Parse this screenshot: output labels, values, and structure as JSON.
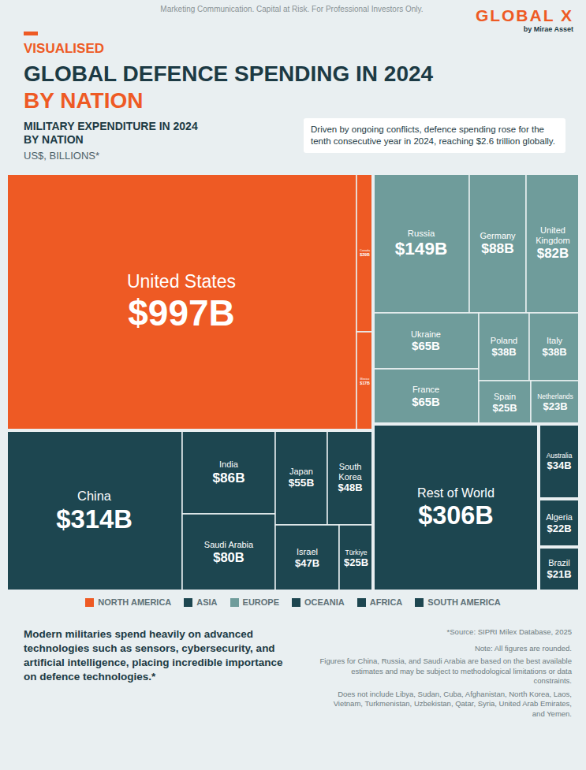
{
  "header": {
    "disclaimer": "Marketing Communication. Capital at Risk. For Professional Investors Only.",
    "brand": "GLOBAL X",
    "brand_sub": "by Mirae Asset",
    "kicker": "VISUALISED",
    "title": [
      "GLOBAL DEFENCE SPENDING IN 2024",
      "BY NATION"
    ]
  },
  "chart_data": {
    "type": "treemap",
    "title": "MILITARY EXPENDITURE IN 2024 BY NATION",
    "subtitle": "US$, BILLIONS*",
    "annotation": "Driven by ongoing conflicts, defence spending rose for the tenth consecutive year in 2024, reaching $2.6 trillion globally.",
    "categories": [
      "United States",
      "Canada",
      "Mexico",
      "China",
      "India",
      "Saudi Arabia",
      "Japan",
      "South Korea",
      "Israel",
      "Türkiye",
      "Russia",
      "Germany",
      "United Kingdom",
      "Ukraine",
      "France",
      "Poland",
      "Italy",
      "Spain",
      "Netherlands",
      "Rest of World",
      "Australia",
      "Algeria",
      "Brazil"
    ],
    "values": [
      997,
      29,
      17,
      314,
      86,
      80,
      55,
      48,
      47,
      25,
      149,
      88,
      82,
      65,
      65,
      38,
      38,
      25,
      23,
      306,
      34,
      22,
      21
    ],
    "value_labels": [
      "$997B",
      "$29B",
      "$17B",
      "$314B",
      "$86B",
      "$80B",
      "$55B",
      "$48B",
      "$47B",
      "$25B",
      "$149B",
      "$88B",
      "$82B",
      "$65B",
      "$65B",
      "$38B",
      "$38B",
      "$25B",
      "$23B",
      "$306B",
      "$34B",
      "$22B",
      "$21B"
    ],
    "regions": [
      "NORTH AMERICA",
      "NORTH AMERICA",
      "NORTH AMERICA",
      "ASIA",
      "ASIA",
      "ASIA",
      "ASIA",
      "ASIA",
      "ASIA",
      "ASIA",
      "EUROPE",
      "EUROPE",
      "EUROPE",
      "EUROPE",
      "EUROPE",
      "EUROPE",
      "EUROPE",
      "EUROPE",
      "EUROPE",
      null,
      "OCEANIA",
      "AFRICA",
      "SOUTH AMERICA"
    ],
    "colors": [
      "#ee5a24",
      "#ee5a24",
      "#ee5a24",
      "#1d4650",
      "#1d4650",
      "#1d4650",
      "#1d4650",
      "#1d4650",
      "#1d4650",
      "#1d4650",
      "#6f9c9b",
      "#6f9c9b",
      "#6f9c9b",
      "#6f9c9b",
      "#6f9c9b",
      "#6f9c9b",
      "#6f9c9b",
      "#6f9c9b",
      "#6f9c9b",
      "#1d4650",
      "#1d4650",
      "#1d4650",
      "#1d4650"
    ],
    "data_labels": true
  },
  "footer": {
    "text": "Modern militaries spend heavily on advanced technologies such as sensors, cybersecurity, and artificial intelligence, placing incredible importance on defence technologies.*",
    "source": "*Source: SIPRI Milex Database, 2025",
    "notes": [
      "Note: All figures are rounded.",
      "Figures for China, Russia, and Saudi Arabia are based on the best available estimates and may be subject to methodological limitations or data constraints.",
      "Does not include Libya, Sudan, Cuba, Afghanistan, North Korea, Laos, Vietnam, Turkmenistan, Uzbekistan, Qatar, Syria, United Arab Emirates, and Yemen."
    ]
  }
}
